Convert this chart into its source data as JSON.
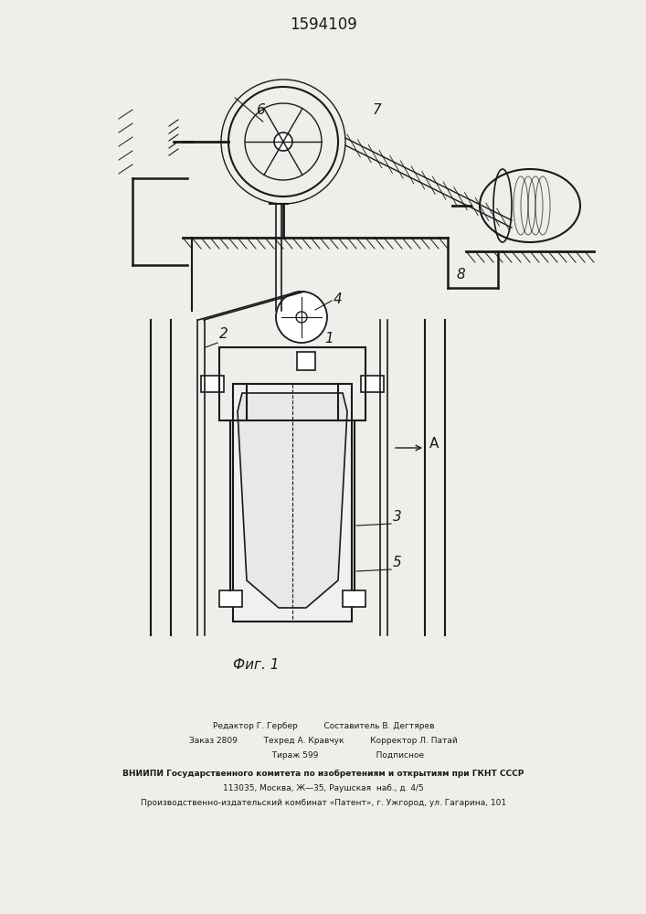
{
  "title": "1594109",
  "fig_caption": "Фиг. 1",
  "background_color": "#f0eeeb",
  "line_color": "#1a1a1a",
  "label_6": "6",
  "label_7": "7",
  "label_8": "8",
  "label_1": "1",
  "label_2": "2",
  "label_3": "3",
  "label_4": "4",
  "label_5": "5",
  "label_A": "A",
  "footer_line1": "Редактор Г. Гербер          Составитель В. Дегтярев",
  "footer_line2": "Заказ 2809          Техред А. Кравчук          Корректор Л. Патай",
  "footer_line3": "                   Тираж 599                      Подписное",
  "footer_line4": "ВНИИПИ Государственного комитета по изобретениям и открытиям при ГКНТ СССР",
  "footer_line5": "113035, Москва, Ж—35, Раушская  наб., д. 4/5",
  "footer_line6": "Производственно-издательский комбинат «Патент», г. Ужгород, ул. Гагарина, 101"
}
